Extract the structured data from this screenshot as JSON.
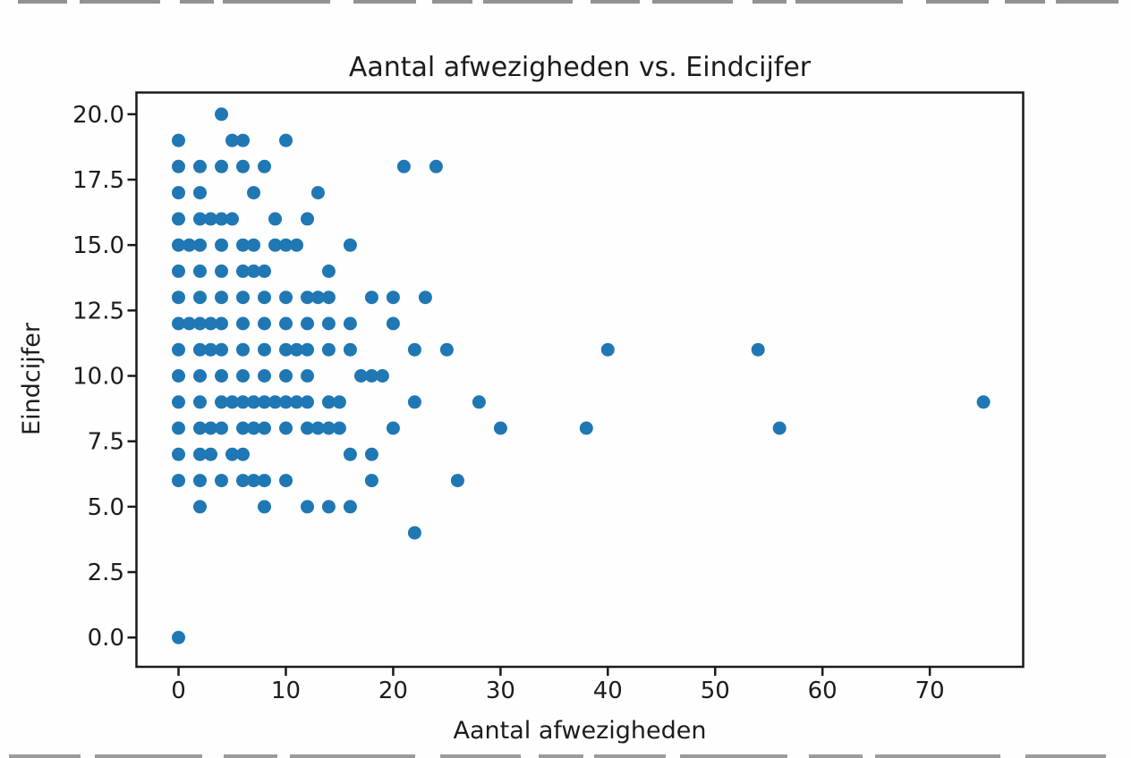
{
  "chart_data": {
    "type": "scatter",
    "title": "Aantal afwezigheden vs. Eindcijfer",
    "xlabel": "Aantal afwezigheden",
    "ylabel": "Eindcijfer",
    "xlim": [
      -3.92,
      78.7
    ],
    "ylim": [
      -1.12,
      20.83
    ],
    "xticks": [
      0,
      10,
      20,
      30,
      40,
      50,
      60,
      70
    ],
    "xtick_labels": [
      "0",
      "10",
      "20",
      "30",
      "40",
      "50",
      "60",
      "70"
    ],
    "yticks": [
      0,
      2.5,
      5,
      7.5,
      10,
      12.5,
      15,
      17.5,
      20
    ],
    "ytick_labels": [
      "0.0",
      "2.5",
      "5.0",
      "7.5",
      "10.0",
      "12.5",
      "15.0",
      "17.5",
      "20.0"
    ],
    "grid": false,
    "legend": null,
    "marker_color": "#1f77b4",
    "marker_radius_px": 7.5,
    "points": [
      [
        4,
        20
      ],
      [
        0,
        19
      ],
      [
        5,
        19
      ],
      [
        6,
        19
      ],
      [
        10,
        19
      ],
      [
        0,
        18
      ],
      [
        2,
        18
      ],
      [
        4,
        18
      ],
      [
        6,
        18
      ],
      [
        8,
        18
      ],
      [
        21,
        18
      ],
      [
        24,
        18
      ],
      [
        0,
        17
      ],
      [
        2,
        17
      ],
      [
        7,
        17
      ],
      [
        13,
        17
      ],
      [
        0,
        16
      ],
      [
        2,
        16
      ],
      [
        3,
        16
      ],
      [
        4,
        16
      ],
      [
        5,
        16
      ],
      [
        9,
        16
      ],
      [
        12,
        16
      ],
      [
        0,
        15
      ],
      [
        1,
        15
      ],
      [
        2,
        15
      ],
      [
        4,
        15
      ],
      [
        6,
        15
      ],
      [
        7,
        15
      ],
      [
        9,
        15
      ],
      [
        10,
        15
      ],
      [
        11,
        15
      ],
      [
        16,
        15
      ],
      [
        0,
        14
      ],
      [
        2,
        14
      ],
      [
        4,
        14
      ],
      [
        6,
        14
      ],
      [
        7,
        14
      ],
      [
        8,
        14
      ],
      [
        14,
        14
      ],
      [
        0,
        13
      ],
      [
        2,
        13
      ],
      [
        4,
        13
      ],
      [
        6,
        13
      ],
      [
        8,
        13
      ],
      [
        10,
        13
      ],
      [
        12,
        13
      ],
      [
        13,
        13
      ],
      [
        14,
        13
      ],
      [
        18,
        13
      ],
      [
        20,
        13
      ],
      [
        23,
        13
      ],
      [
        0,
        12
      ],
      [
        1,
        12
      ],
      [
        2,
        12
      ],
      [
        3,
        12
      ],
      [
        4,
        12
      ],
      [
        6,
        12
      ],
      [
        8,
        12
      ],
      [
        10,
        12
      ],
      [
        12,
        12
      ],
      [
        14,
        12
      ],
      [
        16,
        12
      ],
      [
        20,
        12
      ],
      [
        0,
        11
      ],
      [
        2,
        11
      ],
      [
        3,
        11
      ],
      [
        4,
        11
      ],
      [
        6,
        11
      ],
      [
        8,
        11
      ],
      [
        10,
        11
      ],
      [
        11,
        11
      ],
      [
        12,
        11
      ],
      [
        14,
        11
      ],
      [
        16,
        11
      ],
      [
        22,
        11
      ],
      [
        25,
        11
      ],
      [
        40,
        11
      ],
      [
        54,
        11
      ],
      [
        0,
        10
      ],
      [
        2,
        10
      ],
      [
        4,
        10
      ],
      [
        6,
        10
      ],
      [
        8,
        10
      ],
      [
        10,
        10
      ],
      [
        12,
        10
      ],
      [
        17,
        10
      ],
      [
        18,
        10
      ],
      [
        19,
        10
      ],
      [
        0,
        9
      ],
      [
        2,
        9
      ],
      [
        4,
        9
      ],
      [
        5,
        9
      ],
      [
        6,
        9
      ],
      [
        7,
        9
      ],
      [
        8,
        9
      ],
      [
        9,
        9
      ],
      [
        10,
        9
      ],
      [
        11,
        9
      ],
      [
        12,
        9
      ],
      [
        14,
        9
      ],
      [
        15,
        9
      ],
      [
        22,
        9
      ],
      [
        28,
        9
      ],
      [
        75,
        9
      ],
      [
        0,
        8
      ],
      [
        2,
        8
      ],
      [
        3,
        8
      ],
      [
        4,
        8
      ],
      [
        6,
        8
      ],
      [
        7,
        8
      ],
      [
        8,
        8
      ],
      [
        10,
        8
      ],
      [
        12,
        8
      ],
      [
        13,
        8
      ],
      [
        14,
        8
      ],
      [
        15,
        8
      ],
      [
        20,
        8
      ],
      [
        30,
        8
      ],
      [
        38,
        8
      ],
      [
        56,
        8
      ],
      [
        0,
        7
      ],
      [
        2,
        7
      ],
      [
        3,
        7
      ],
      [
        5,
        7
      ],
      [
        6,
        7
      ],
      [
        16,
        7
      ],
      [
        18,
        7
      ],
      [
        0,
        6
      ],
      [
        2,
        6
      ],
      [
        4,
        6
      ],
      [
        6,
        6
      ],
      [
        7,
        6
      ],
      [
        8,
        6
      ],
      [
        10,
        6
      ],
      [
        18,
        6
      ],
      [
        26,
        6
      ],
      [
        2,
        5
      ],
      [
        8,
        5
      ],
      [
        12,
        5
      ],
      [
        14,
        5
      ],
      [
        16,
        5
      ],
      [
        22,
        4
      ],
      [
        0,
        0
      ]
    ]
  }
}
